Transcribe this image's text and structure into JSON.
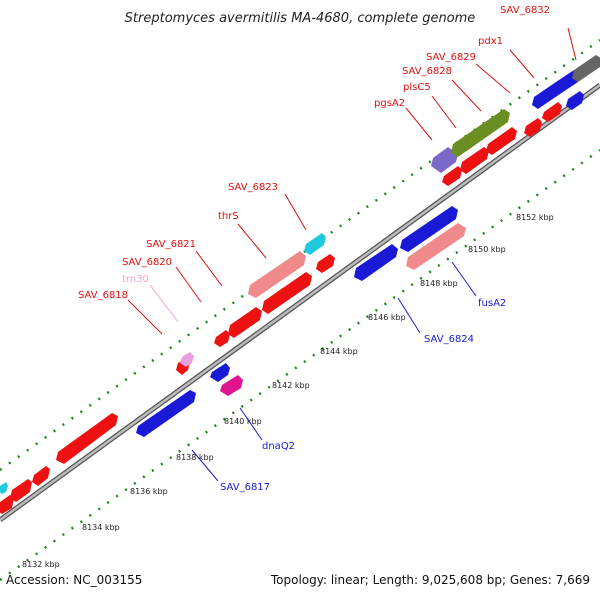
{
  "title": "Streptomyces avermitilis MA-4680, complete genome",
  "footer": {
    "accession": "Accession: NC_003155",
    "topology": "Topology: linear; Length: 9,025,608 bp; Genes: 7,669"
  },
  "colors": {
    "forward_strand": "#ee1111",
    "forward_rna": "#f08a8a",
    "reverse_strand": "#1a1ad6",
    "trna": "#e8a0e0",
    "misc_magenta": "#e0148c",
    "cyan_feature": "#20c8e0",
    "olive_feature": "#6b8e23",
    "purple_feature": "#7b68c8",
    "gray_feature": "#666666",
    "backbone": "#999999",
    "tick": "#1a8a1a",
    "label_red": "#dd1111",
    "label_blue": "#1a1ad6",
    "label_pink": "#f0a0d0"
  },
  "ticks": [
    "8132 kbp",
    "8134 kbp",
    "8136 kbp",
    "8138 kbp",
    "8140 kbp",
    "8142 kbp",
    "8144 kbp",
    "8146 kbp",
    "8148 kbp",
    "8150 kbp",
    "8152 kbp"
  ],
  "forward_labels": [
    "SAV_6832",
    "pdx1",
    "SAV_6829",
    "SAV_6828",
    "plsC5",
    "pgsA2",
    "SAV_6823",
    "thrS",
    "SAV_6821",
    "SAV_6820",
    "trn30",
    "SAV_6818"
  ],
  "reverse_labels": [
    "fusA2",
    "SAV_6824",
    "dnaQ2",
    "SAV_6817"
  ]
}
